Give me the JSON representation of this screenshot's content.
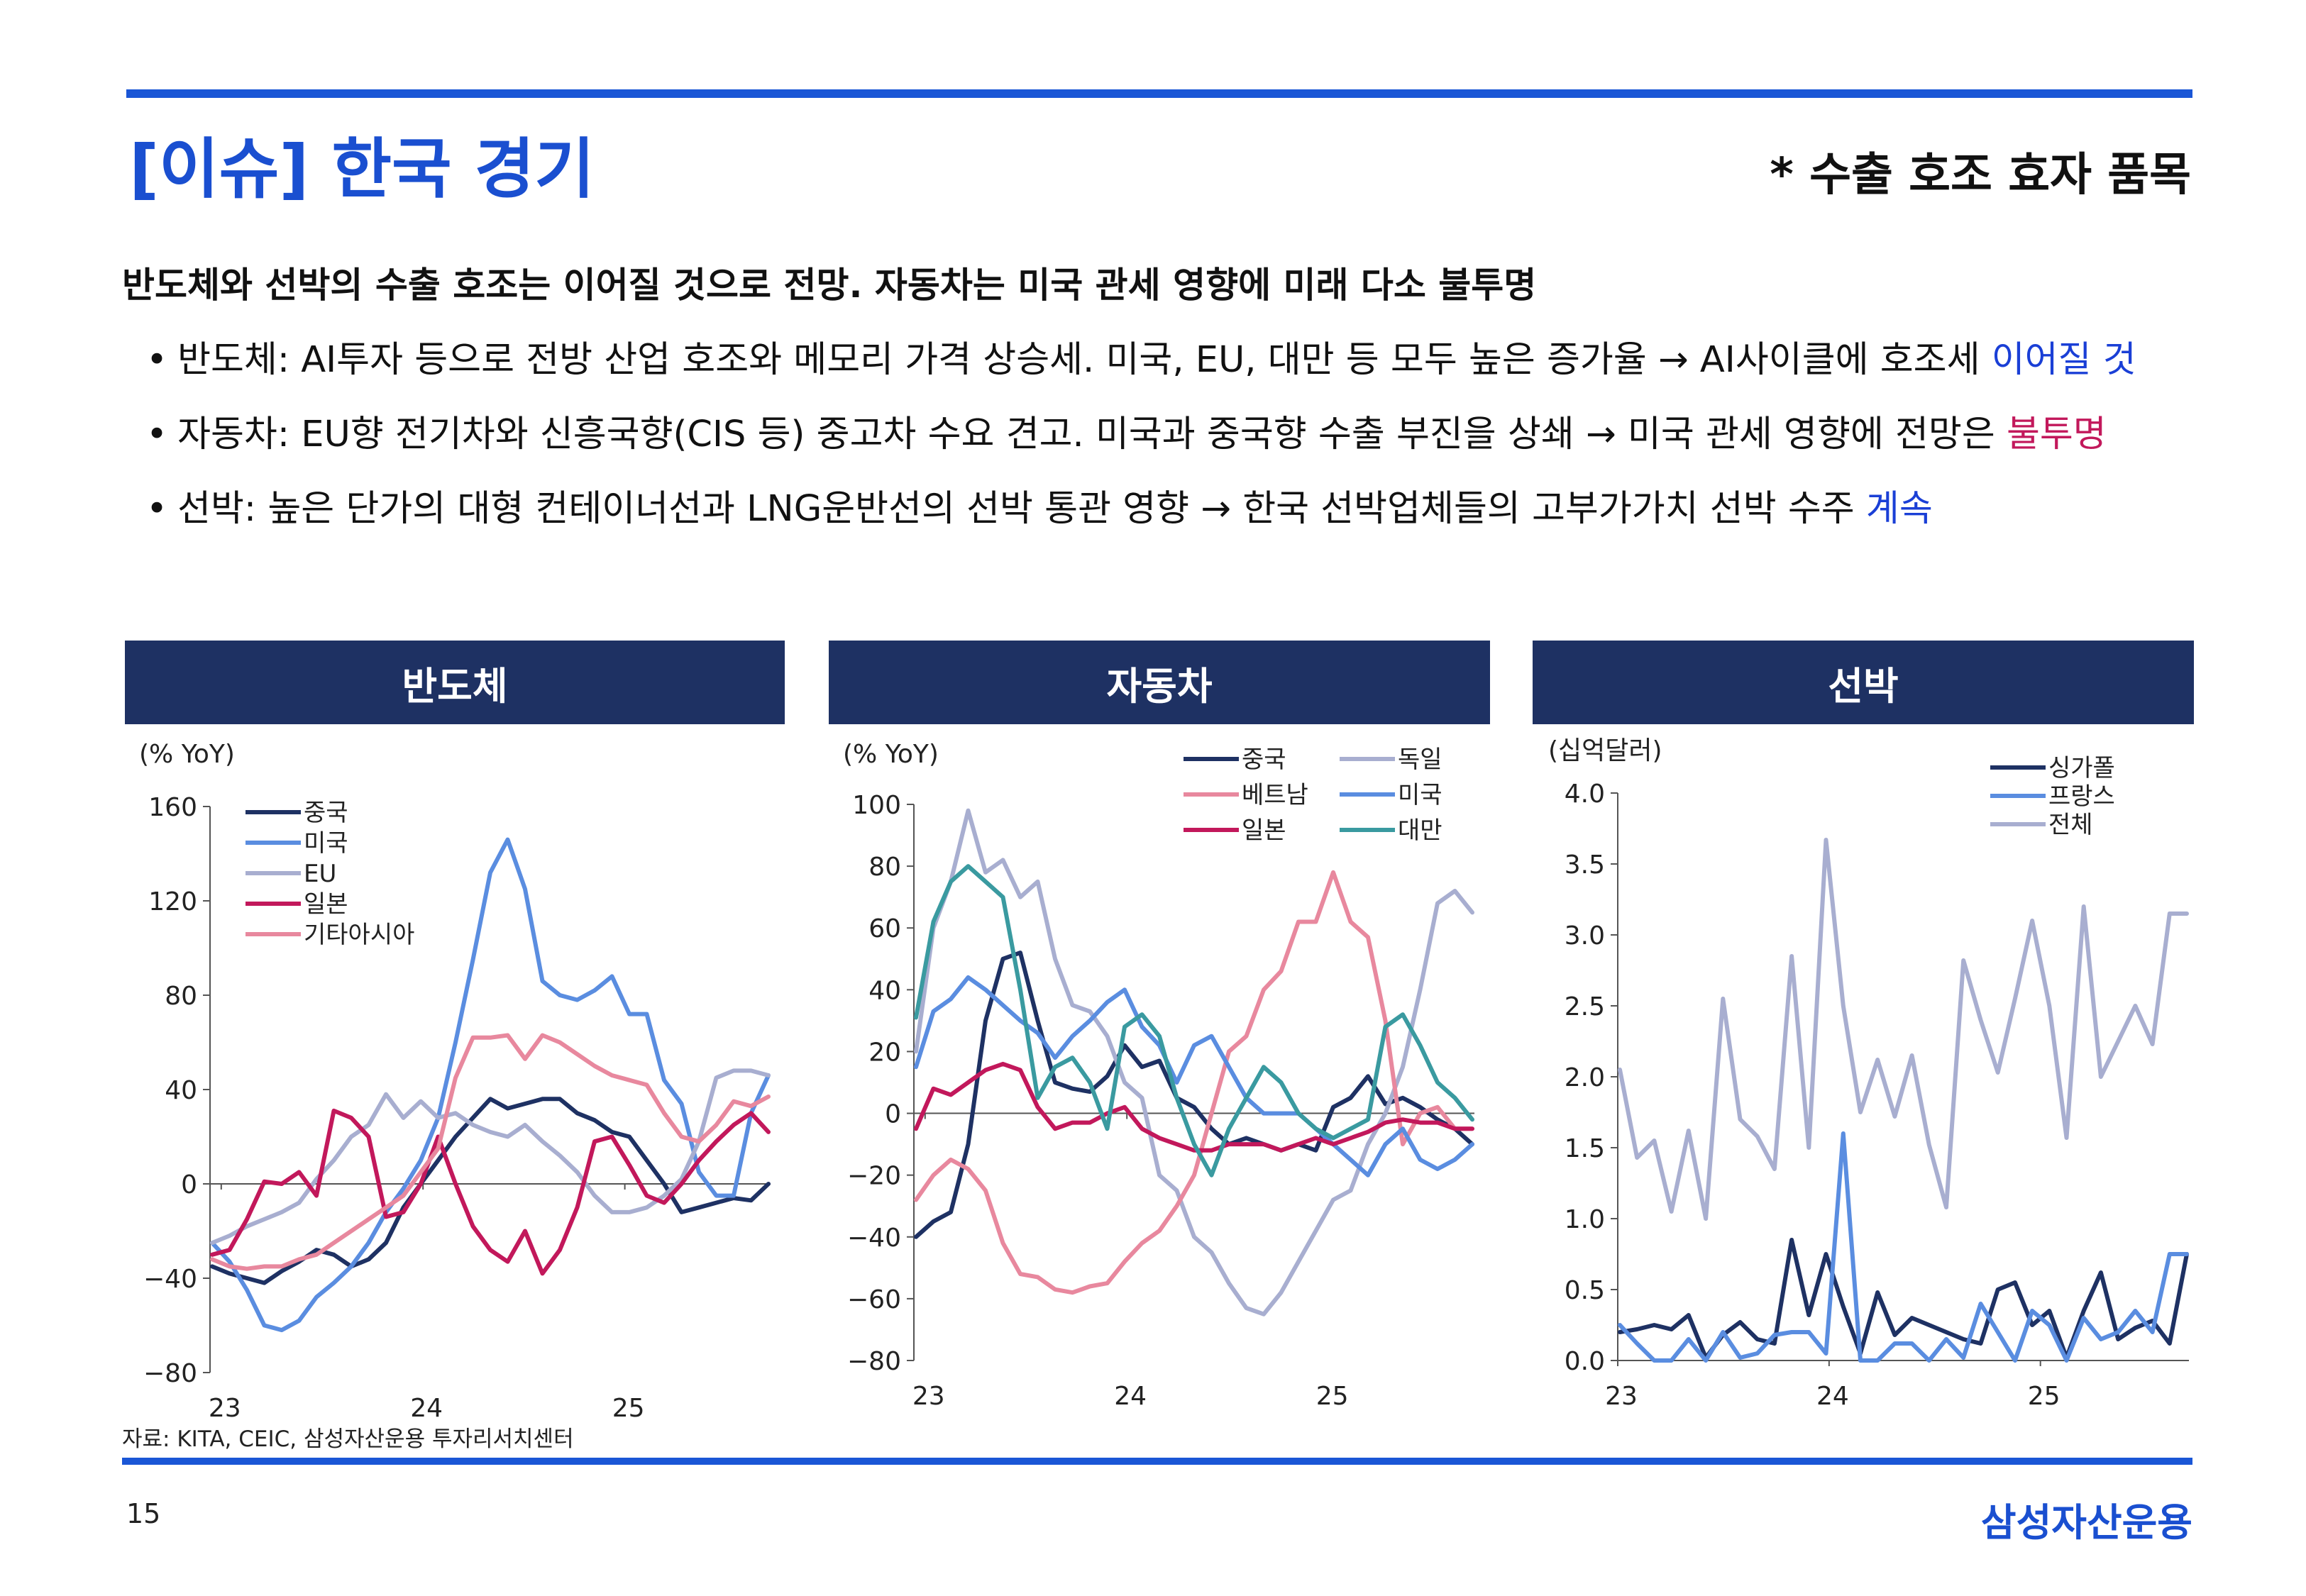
{
  "header": {
    "title": "[이슈] 한국 경기",
    "subtitle": "* 수출 호조 효자 품목"
  },
  "headline": "반도체와 선박의 수출 호조는 이어질 것으로 전망. 자동차는 미국 관세 영향에 미래 다소 불투명",
  "bullets": [
    {
      "dot": "•",
      "text": "반도체: AI투자 등으로 전방 산업 호조와 메모리 가격 상승세. 미국, EU, 대만 등 모두 높은 증가율 → AI사이클에 호조세 ",
      "highlight": "이어질 것"
    },
    {
      "dot": "•",
      "text": "자동차: EU향 전기차와 신흥국향(CIS 등) 중고차 수요 견고. 미국과 중국향 수출 부진을 상쇄 → 미국 관세 영향에 전망은 ",
      "highlight": "불투명"
    },
    {
      "dot": "•",
      "text": "선박: 높은 단가의 대형 컨테이너선과 LNG운반선의 선박 통관 영향 → 한국 선박업체들의 고부가가치 선박 수주 ",
      "highlight": "계속"
    }
  ],
  "colors": {
    "accent": "#1a56d6",
    "panel_header": "#1e3163",
    "highlight_blue": "#1a3fd6",
    "highlight_pink": "#c2185b"
  },
  "panels": [
    "반도체",
    "자동차",
    "선박"
  ],
  "chart_data": [
    {
      "type": "line",
      "title": "반도체",
      "unit": "(% YoY)",
      "x_labels": [
        "23",
        "24",
        "25"
      ],
      "ylim": [
        -80,
        160
      ],
      "yticks": [
        -80,
        -40,
        0,
        40,
        80,
        120,
        160
      ],
      "legend_position": "top-left",
      "series": [
        {
          "name": "중국",
          "color": "#1e3163",
          "values": [
            -35,
            -38,
            -40,
            -42,
            -37,
            -33,
            -28,
            -30,
            -35,
            -32,
            -25,
            -10,
            0,
            10,
            20,
            28,
            36,
            32,
            34,
            36,
            36,
            30,
            27,
            22,
            20,
            10,
            0,
            -12,
            -10,
            -8,
            -6,
            -7,
            0
          ]
        },
        {
          "name": "미국",
          "color": "#5a8de0",
          "values": [
            -25,
            -33,
            -45,
            -60,
            -62,
            -58,
            -48,
            -42,
            -35,
            -25,
            -12,
            -2,
            10,
            28,
            60,
            95,
            132,
            146,
            125,
            86,
            80,
            78,
            82,
            88,
            72,
            72,
            44,
            34,
            5,
            -5,
            -5,
            30,
            46
          ]
        },
        {
          "name": "EU",
          "color": "#a8aed0",
          "values": [
            -25,
            -22,
            -18,
            -15,
            -12,
            -8,
            2,
            10,
            20,
            25,
            38,
            28,
            35,
            28,
            30,
            25,
            22,
            20,
            25,
            18,
            12,
            5,
            -5,
            -12,
            -12,
            -10,
            -5,
            2,
            18,
            45,
            48,
            48,
            46
          ]
        },
        {
          "name": "일본",
          "color": "#c2185b",
          "values": [
            -30,
            -28,
            -15,
            1,
            0,
            5,
            -5,
            31,
            28,
            20,
            -14,
            -12,
            0,
            20,
            0,
            -18,
            -28,
            -33,
            -20,
            -38,
            -28,
            -10,
            18,
            20,
            8,
            -5,
            -8,
            0,
            10,
            18,
            25,
            30,
            22
          ]
        },
        {
          "name": "기타아시아",
          "color": "#e8889e",
          "values": [
            -32,
            -35,
            -36,
            -35,
            -35,
            -32,
            -30,
            -25,
            -20,
            -15,
            -10,
            -5,
            5,
            15,
            45,
            62,
            62,
            63,
            53,
            63,
            60,
            55,
            50,
            46,
            44,
            42,
            30,
            20,
            18,
            25,
            35,
            33,
            37
          ]
        }
      ]
    },
    {
      "type": "line",
      "title": "자동차",
      "unit": "(% YoY)",
      "x_labels": [
        "23",
        "24",
        "25"
      ],
      "ylim": [
        -80,
        100
      ],
      "yticks": [
        -80,
        -60,
        -40,
        -20,
        0,
        20,
        40,
        60,
        80,
        100
      ],
      "legend_position": "top-right",
      "series": [
        {
          "name": "중국",
          "color": "#1e3163",
          "values": [
            -40,
            -35,
            -32,
            -10,
            30,
            50,
            52,
            30,
            10,
            8,
            7,
            12,
            22,
            15,
            17,
            5,
            2,
            -5,
            -10,
            -8,
            -10,
            -12,
            -10,
            -12,
            2,
            5,
            12,
            3,
            5,
            2,
            -2,
            -5,
            -10
          ]
        },
        {
          "name": "독일",
          "color": "#a8aed0",
          "values": [
            20,
            60,
            75,
            98,
            78,
            82,
            70,
            75,
            50,
            35,
            33,
            25,
            10,
            5,
            -20,
            -25,
            -40,
            -45,
            -55,
            -63,
            -65,
            -58,
            -48,
            -38,
            -28,
            -25,
            -10,
            0,
            15,
            40,
            68,
            72,
            65
          ]
        },
        {
          "name": "베트남",
          "color": "#e8889e",
          "values": [
            -28,
            -20,
            -15,
            -18,
            -25,
            -42,
            -52,
            -53,
            -57,
            -58,
            -56,
            -55,
            -48,
            -42,
            -38,
            -30,
            -20,
            0,
            20,
            25,
            40,
            46,
            62,
            62,
            78,
            62,
            57,
            30,
            -10,
            0,
            2,
            -5,
            -5
          ]
        },
        {
          "name": "미국",
          "color": "#5a8de0",
          "values": [
            15,
            33,
            37,
            44,
            40,
            35,
            30,
            26,
            18,
            25,
            30,
            36,
            40,
            28,
            22,
            10,
            22,
            25,
            15,
            5,
            0,
            0,
            0,
            -5,
            -10,
            -15,
            -20,
            -10,
            -5,
            -15,
            -18,
            -15,
            -10
          ]
        },
        {
          "name": "일본",
          "color": "#c2185b",
          "values": [
            -5,
            8,
            6,
            10,
            14,
            16,
            14,
            2,
            -5,
            -3,
            -3,
            0,
            2,
            -5,
            -8,
            -10,
            -12,
            -12,
            -10,
            -10,
            -10,
            -12,
            -10,
            -8,
            -10,
            -8,
            -6,
            -3,
            -2,
            -3,
            -3,
            -5,
            -5
          ]
        },
        {
          "name": "대만",
          "color": "#3a9aa0",
          "values": [
            31,
            62,
            75,
            80,
            75,
            70,
            40,
            5,
            15,
            18,
            10,
            -5,
            28,
            32,
            25,
            5,
            -10,
            -20,
            -5,
            5,
            15,
            10,
            0,
            -5,
            -8,
            -5,
            -2,
            28,
            32,
            22,
            10,
            5,
            -2
          ]
        }
      ]
    },
    {
      "type": "line",
      "title": "선박",
      "unit": "(십억달러)",
      "x_labels": [
        "23",
        "24",
        "25"
      ],
      "ylim": [
        0.0,
        4.0
      ],
      "yticks": [
        0.0,
        0.5,
        1.0,
        1.5,
        2.0,
        2.5,
        3.0,
        3.5,
        4.0
      ],
      "legend_position": "top-right",
      "series": [
        {
          "name": "싱가폴",
          "color": "#1e3163",
          "values": [
            0.2,
            0.22,
            0.25,
            0.22,
            0.32,
            0.02,
            0.18,
            0.27,
            0.15,
            0.12,
            0.85,
            0.32,
            0.75,
            0.38,
            0.05,
            0.48,
            0.18,
            0.3,
            0.25,
            0.2,
            0.15,
            0.12,
            0.5,
            0.55,
            0.25,
            0.35,
            0.02,
            0.35,
            0.62,
            0.15,
            0.23,
            0.28,
            0.12,
            0.75
          ]
        },
        {
          "name": "프랑스",
          "color": "#5a8de0",
          "values": [
            0.25,
            0.12,
            0.0,
            0.0,
            0.15,
            0.0,
            0.2,
            0.02,
            0.05,
            0.18,
            0.2,
            0.2,
            0.05,
            1.6,
            0.0,
            0.0,
            0.12,
            0.12,
            0.0,
            0.15,
            0.02,
            0.4,
            0.2,
            0.0,
            0.35,
            0.25,
            0.0,
            0.3,
            0.15,
            0.2,
            0.35,
            0.2,
            0.75,
            0.75
          ]
        },
        {
          "name": "전체",
          "color": "#a8aed0",
          "values": [
            2.05,
            1.43,
            1.55,
            1.05,
            1.62,
            1.0,
            2.55,
            1.7,
            1.58,
            1.35,
            2.85,
            1.5,
            3.67,
            2.5,
            1.75,
            2.12,
            1.72,
            2.15,
            1.52,
            1.08,
            2.82,
            2.4,
            2.03,
            2.55,
            3.1,
            2.5,
            1.57,
            3.2,
            2.0,
            2.25,
            2.5,
            2.23,
            3.15,
            3.15
          ]
        }
      ]
    }
  ],
  "footer": {
    "source": "자료: KITA, CEIC, 삼성자산운용 투자리서치센터",
    "page_number": "15",
    "brand": "삼성자산운용"
  }
}
